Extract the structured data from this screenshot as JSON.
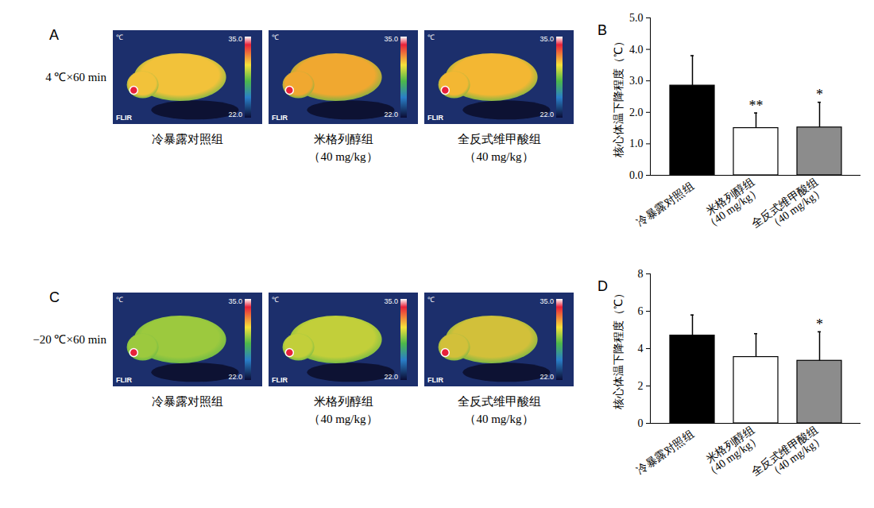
{
  "chart_data": [
    {
      "type": "bar",
      "panel": "B",
      "categories": [
        "冷暴露对照组",
        "米格列醇组（40 mg/kg）",
        "全反式维甲酸组（40 mg/kg）"
      ],
      "values": [
        2.85,
        1.5,
        1.52
      ],
      "errors": [
        0.95,
        0.48,
        0.8
      ],
      "significance": [
        null,
        "**",
        "*"
      ],
      "colors": [
        "#000000",
        "#ffffff",
        "#8c8c8c"
      ],
      "y_label": "核心体温下降程度（℃）",
      "ylim": [
        0,
        5
      ],
      "yticks": [
        0,
        1,
        2,
        3,
        4,
        5
      ],
      "grid": false
    },
    {
      "type": "bar",
      "panel": "D",
      "categories": [
        "冷暴露对照组",
        "米格列醇组（40 mg/kg）",
        "全反式维甲酸组（40 mg/kg）"
      ],
      "values": [
        4.7,
        3.55,
        3.35
      ],
      "errors": [
        1.1,
        1.25,
        1.55
      ],
      "significance": [
        null,
        null,
        "*"
      ],
      "colors": [
        "#000000",
        "#ffffff",
        "#8c8c8c"
      ],
      "y_label": "核心体温下降程度（℃）",
      "ylim": [
        0,
        8
      ],
      "yticks": [
        0,
        2,
        4,
        6,
        8
      ],
      "grid": false
    }
  ],
  "image_panels": [
    {
      "panel": "A",
      "condition": "4 ℃×60 min",
      "labels": [
        "冷暴露对照组",
        "米格列醇组（40 mg/kg）",
        "全反式维甲酸组（40 mg/kg）"
      ],
      "scale_labels": [
        {
          "value": 35,
          "label": "35.0"
        },
        {
          "value": 22,
          "label": "22.0"
        }
      ],
      "unit": "℃",
      "brand": "FLIR"
    },
    {
      "panel": "C",
      "condition": "−20 ℃×60 min",
      "labels": [
        "冷暴露对照组",
        "米格列醇组（40 mg/kg）",
        "全反式维甲酸组（40 mg/kg）"
      ],
      "scale_labels": [
        {
          "value": 35,
          "label": "35.0"
        },
        {
          "value": 22,
          "label": "22.0"
        }
      ],
      "unit": "℃",
      "brand": "FLIR"
    }
  ]
}
